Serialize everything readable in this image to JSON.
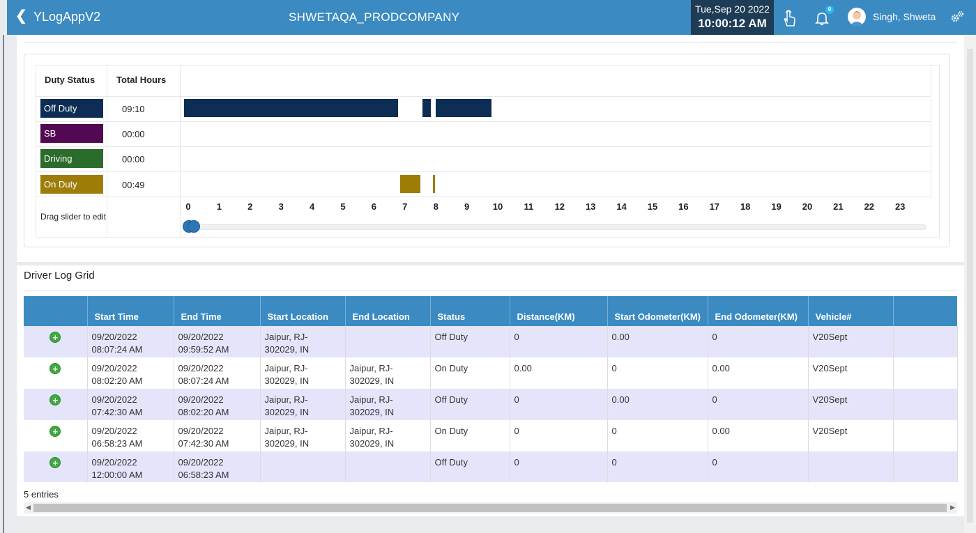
{
  "header": {
    "back_icon": "chevron-left-icon",
    "app_title": "YLogAppV2",
    "company": "SHWETAQA_PRODCOMPANY",
    "date": "Tue,Sep 20 2022",
    "time": "10:00:12 AM",
    "notification_count": "0",
    "user_name": "Singh, Shweta",
    "colors": {
      "bar": "#3b8bc2",
      "clock": "#1f3c56"
    }
  },
  "chart": {
    "col_duty": "Duty Status",
    "col_hours": "Total Hours",
    "statuses": [
      {
        "label": "Off Duty",
        "hours": "09:10",
        "color": "#0d2d55"
      },
      {
        "label": "SB",
        "hours": "00:00",
        "color": "#520852"
      },
      {
        "label": "Driving",
        "hours": "00:00",
        "color": "#2b6b2b"
      },
      {
        "label": "On Duty",
        "hours": "00:49",
        "color": "#9d7d08"
      }
    ],
    "drag_text": "Drag slider to edit",
    "ticks": [
      "0",
      "1",
      "2",
      "3",
      "4",
      "5",
      "6",
      "7",
      "8",
      "9",
      "10",
      "11",
      "12",
      "13",
      "14",
      "15",
      "16",
      "17",
      "18",
      "19",
      "20",
      "21",
      "22",
      "23"
    ],
    "slider_value": 0
  },
  "chart_data": {
    "type": "gantt",
    "x_unit": "hour",
    "xlim": [
      0,
      24
    ],
    "rows": [
      "Off Duty",
      "SB",
      "Driving",
      "On Duty"
    ],
    "segments": [
      {
        "row": "Off Duty",
        "start": 0,
        "end": 6.98
      },
      {
        "row": "On Duty",
        "start": 6.98,
        "end": 7.71
      },
      {
        "row": "Off Duty",
        "start": 7.71,
        "end": 8.04
      },
      {
        "row": "On Duty",
        "start": 8.04,
        "end": 8.12
      },
      {
        "row": "Off Duty",
        "start": 8.12,
        "end": 10.0
      }
    ]
  },
  "grid": {
    "title": "Driver Log Grid",
    "columns": [
      "",
      "Start Time",
      "End Time",
      "Start Location",
      "End Location",
      "Status",
      "Distance(KM)",
      "Start Odometer(KM)",
      "End Odometer(KM)",
      "Vehicle#",
      ""
    ],
    "rows": [
      {
        "start_time": "09/20/2022 08:07:24 AM",
        "end_time": "09/20/2022 09:59:52 AM",
        "start_loc": "Jaipur, RJ-302029, IN",
        "end_loc": "",
        "status": "Off Duty",
        "distance": "0",
        "start_odo": "0.00",
        "end_odo": "0",
        "vehicle": "V20Sept"
      },
      {
        "start_time": "09/20/2022 08:02:20 AM",
        "end_time": "09/20/2022 08:07:24 AM",
        "start_loc": "Jaipur, RJ-302029, IN",
        "end_loc": "Jaipur, RJ-302029, IN",
        "status": "On Duty",
        "distance": "0.00",
        "start_odo": "0",
        "end_odo": "0.00",
        "vehicle": "V20Sept"
      },
      {
        "start_time": "09/20/2022 07:42:30 AM",
        "end_time": "09/20/2022 08:02:20 AM",
        "start_loc": "Jaipur, RJ-302029, IN",
        "end_loc": "Jaipur, RJ-302029, IN",
        "status": "Off Duty",
        "distance": "0",
        "start_odo": "0.00",
        "end_odo": "0",
        "vehicle": "V20Sept"
      },
      {
        "start_time": "09/20/2022 06:58:23 AM",
        "end_time": "09/20/2022 07:42:30 AM",
        "start_loc": "Jaipur, RJ-302029, IN",
        "end_loc": "Jaipur, RJ-302029, IN",
        "status": "On Duty",
        "distance": "0",
        "start_odo": "0",
        "end_odo": "0.00",
        "vehicle": "V20Sept"
      },
      {
        "start_time": "09/20/2022 12:00:00 AM",
        "end_time": "09/20/2022 06:58:23 AM",
        "start_loc": "",
        "end_loc": "",
        "status": "Off Duty",
        "distance": "0",
        "start_odo": "0",
        "end_odo": "0",
        "vehicle": ""
      }
    ],
    "entries": "5 entries"
  }
}
